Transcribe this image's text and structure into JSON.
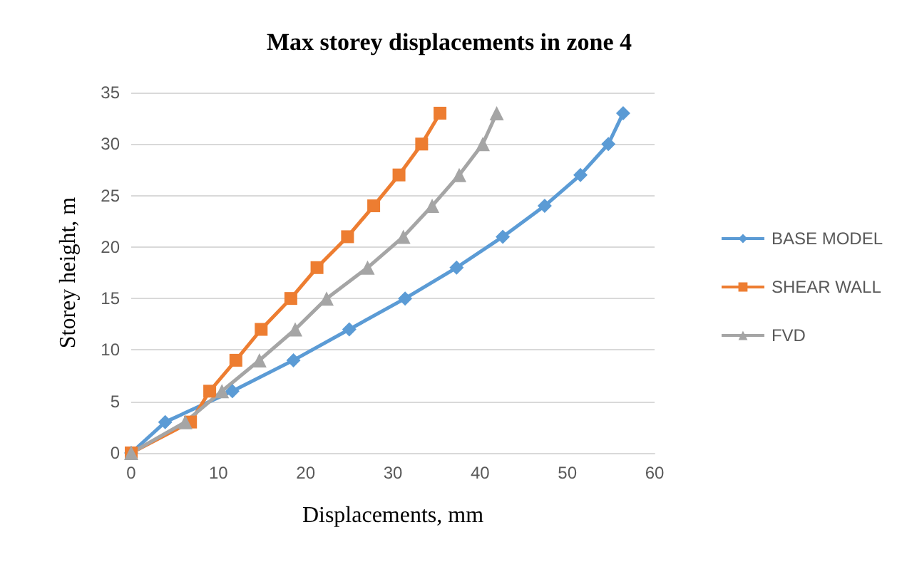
{
  "chart_data": {
    "type": "line",
    "title": "Max storey displacements in zone 4",
    "xlabel": "Displacements, mm",
    "ylabel": "Storey height, m",
    "xlim": [
      0,
      60
    ],
    "xticks": [
      0,
      10,
      20,
      30,
      40,
      50,
      60
    ],
    "ylim": [
      0,
      35
    ],
    "yticks": [
      0,
      5,
      10,
      15,
      20,
      25,
      30,
      35
    ],
    "grid": "y",
    "legend": "right",
    "series": [
      {
        "name": "BASE MODEL",
        "color": "#5b9bd5",
        "marker": "diamond",
        "x": [
          0,
          3.9,
          11.6,
          18.6,
          25.0,
          31.4,
          37.3,
          42.6,
          47.4,
          51.5,
          54.7,
          56.4
        ],
        "values": [
          0,
          3,
          6,
          9,
          12,
          15,
          18,
          21,
          24,
          27,
          30,
          33
        ]
      },
      {
        "name": "SHEAR WALL",
        "color": "#ed7d31",
        "marker": "square",
        "x": [
          0,
          6.8,
          9.0,
          12.0,
          14.9,
          18.3,
          21.3,
          24.8,
          27.8,
          30.7,
          33.3,
          35.4
        ],
        "values": [
          0,
          3,
          6,
          9,
          12,
          15,
          18,
          21,
          24,
          27,
          30,
          33
        ]
      },
      {
        "name": "FVD",
        "color": "#a5a5a5",
        "marker": "triangle",
        "x": [
          0,
          6.2,
          10.4,
          14.7,
          18.8,
          22.4,
          27.1,
          31.2,
          34.5,
          37.6,
          40.3,
          41.9
        ],
        "values": [
          0,
          3,
          6,
          9,
          12,
          15,
          18,
          21,
          24,
          27,
          30,
          33
        ]
      }
    ]
  }
}
